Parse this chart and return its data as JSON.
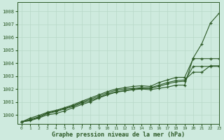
{
  "xlabel": "Graphe pression niveau de la mer (hPa)",
  "xlim": [
    -0.5,
    23
  ],
  "ylim": [
    999.3,
    1008.7
  ],
  "yticks": [
    1000,
    1001,
    1002,
    1003,
    1004,
    1005,
    1006,
    1007,
    1008
  ],
  "xticks": [
    0,
    1,
    2,
    3,
    4,
    5,
    6,
    7,
    8,
    9,
    10,
    11,
    12,
    13,
    14,
    15,
    16,
    17,
    18,
    19,
    20,
    21,
    22,
    23
  ],
  "bg_color": "#ceeade",
  "line_color": "#2d5a27",
  "grid_color": "#b8d8c8",
  "series": [
    [
      999.45,
      999.55,
      999.75,
      1000.0,
      1000.1,
      1000.3,
      1000.55,
      1000.8,
      1001.0,
      1001.3,
      1001.55,
      1001.75,
      1001.85,
      1001.95,
      1002.0,
      1001.95,
      1002.05,
      1002.15,
      1002.3,
      1002.3,
      1004.4,
      1005.5,
      1007.1,
      1007.85
    ],
    [
      999.45,
      999.6,
      999.8,
      1000.1,
      1000.25,
      1000.45,
      1000.65,
      1000.9,
      1001.1,
      1001.35,
      1001.6,
      1001.78,
      1001.88,
      1001.98,
      1002.05,
      1002.05,
      1002.2,
      1002.4,
      1002.55,
      1002.6,
      1003.75,
      1003.75,
      1003.75,
      1003.75
    ],
    [
      999.45,
      999.65,
      999.85,
      1000.15,
      1000.3,
      1000.5,
      1000.7,
      1000.98,
      1001.2,
      1001.45,
      1001.7,
      1001.9,
      1002.0,
      1002.05,
      1002.1,
      1002.1,
      1002.3,
      1002.5,
      1002.65,
      1002.7,
      1003.3,
      1003.3,
      1003.8,
      1003.8
    ],
    [
      999.45,
      999.75,
      999.95,
      1000.2,
      1000.35,
      1000.55,
      1000.78,
      1001.05,
      1001.3,
      1001.55,
      1001.8,
      1002.0,
      1002.1,
      1002.2,
      1002.25,
      1002.2,
      1002.5,
      1002.7,
      1002.9,
      1002.9,
      1004.35,
      1004.35,
      1004.35,
      1004.35
    ]
  ]
}
